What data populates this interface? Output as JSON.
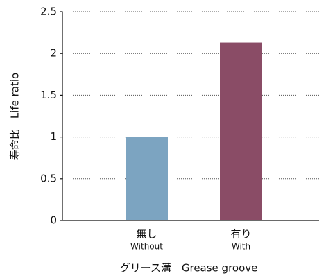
{
  "chart_data": {
    "type": "bar",
    "ylabel": "寿命比　Life ratio",
    "xlabel": "グリース溝　Grease groove",
    "categories": [
      "無し",
      "有り"
    ],
    "categories_en": [
      "Without",
      "With"
    ],
    "values": [
      1.0,
      2.13
    ],
    "colors": [
      "#7ca4c1",
      "#8a4c66"
    ],
    "ylim": [
      0,
      2.5
    ],
    "yticks": [
      0,
      0.5,
      1,
      1.5,
      2,
      2.5
    ],
    "grid": true
  }
}
